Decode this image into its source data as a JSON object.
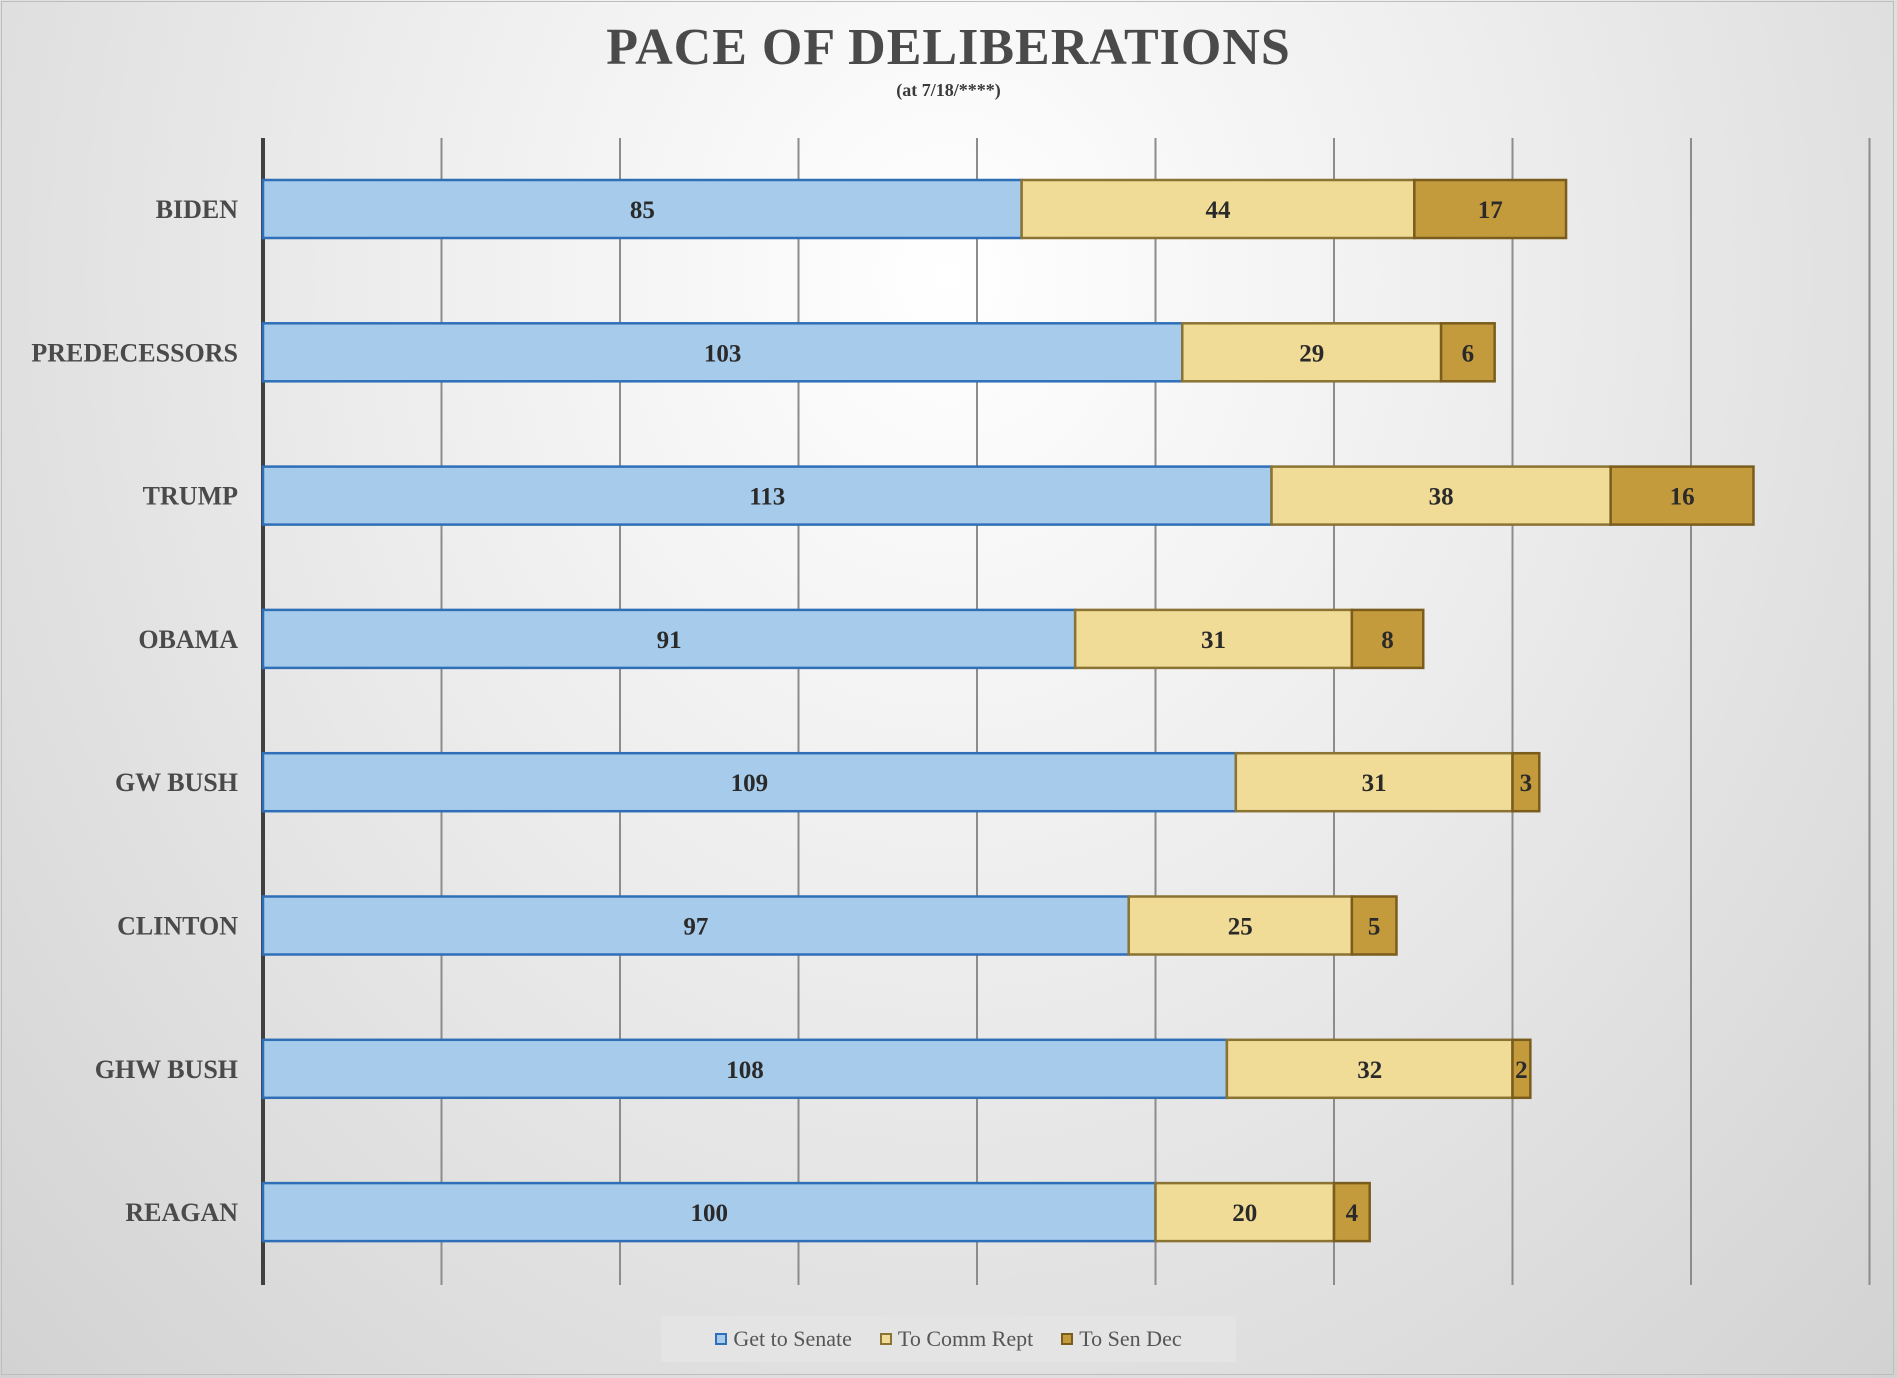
{
  "chart_data": {
    "type": "bar",
    "orientation": "horizontal",
    "stacked": true,
    "title": "PACE OF DELIBERATIONS",
    "subtitle": "(at 7/18/****)",
    "categories": [
      "BIDEN",
      "PREDECESSORS",
      "TRUMP",
      "OBAMA",
      "GW BUSH",
      "CLINTON",
      "GHW BUSH",
      "REAGAN"
    ],
    "series": [
      {
        "name": "Get to Senate",
        "values": [
          85,
          103,
          113,
          91,
          109,
          97,
          108,
          100
        ],
        "color": "#a7cbeb",
        "border": "#2f6fb7"
      },
      {
        "name": "To Comm Rept",
        "values": [
          44,
          29,
          38,
          31,
          31,
          25,
          32,
          20
        ],
        "color": "#f0dc96",
        "border": "#8a7333"
      },
      {
        "name": "To Sen Dec",
        "values": [
          17,
          6,
          16,
          8,
          3,
          5,
          2,
          4
        ],
        "color": "#c39b3c",
        "border": "#7a5d1c"
      }
    ],
    "xlim": [
      0,
      180
    ],
    "x_tick_interval": 20,
    "show_tick_labels": false,
    "grid": true,
    "data_labels": true,
    "legend_position": "bottom"
  }
}
